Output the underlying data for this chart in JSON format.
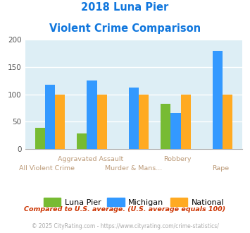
{
  "title_line1": "2018 Luna Pier",
  "title_line2": "Violent Crime Comparison",
  "luna_pier": [
    39,
    29,
    0,
    83,
    0
  ],
  "michigan": [
    118,
    125,
    112,
    66,
    180
  ],
  "national": [
    100,
    100,
    100,
    100,
    100
  ],
  "color_luna": "#77bb33",
  "color_michigan": "#3399ff",
  "color_national": "#ffaa22",
  "bg_chart": "#ddeef5",
  "bg_figure": "#ffffff",
  "ylim": [
    0,
    200
  ],
  "yticks": [
    0,
    50,
    100,
    150,
    200
  ],
  "title_color": "#1177dd",
  "label_color_top": "#bb9977",
  "label_color_bot": "#bb9977",
  "legend_labels": [
    "Luna Pier",
    "Michigan",
    "National"
  ],
  "footnote1": "Compared to U.S. average. (U.S. average equals 100)",
  "footnote2": "© 2025 CityRating.com - https://www.cityrating.com/crime-statistics/",
  "footnote1_color": "#cc3300",
  "footnote2_color": "#aaaaaa",
  "labels_top_row": [
    "",
    "Aggravated Assault",
    "",
    "Robbery",
    ""
  ],
  "labels_bot_row": [
    "All Violent Crime",
    "",
    "Murder & Mans...",
    "",
    "Rape"
  ]
}
